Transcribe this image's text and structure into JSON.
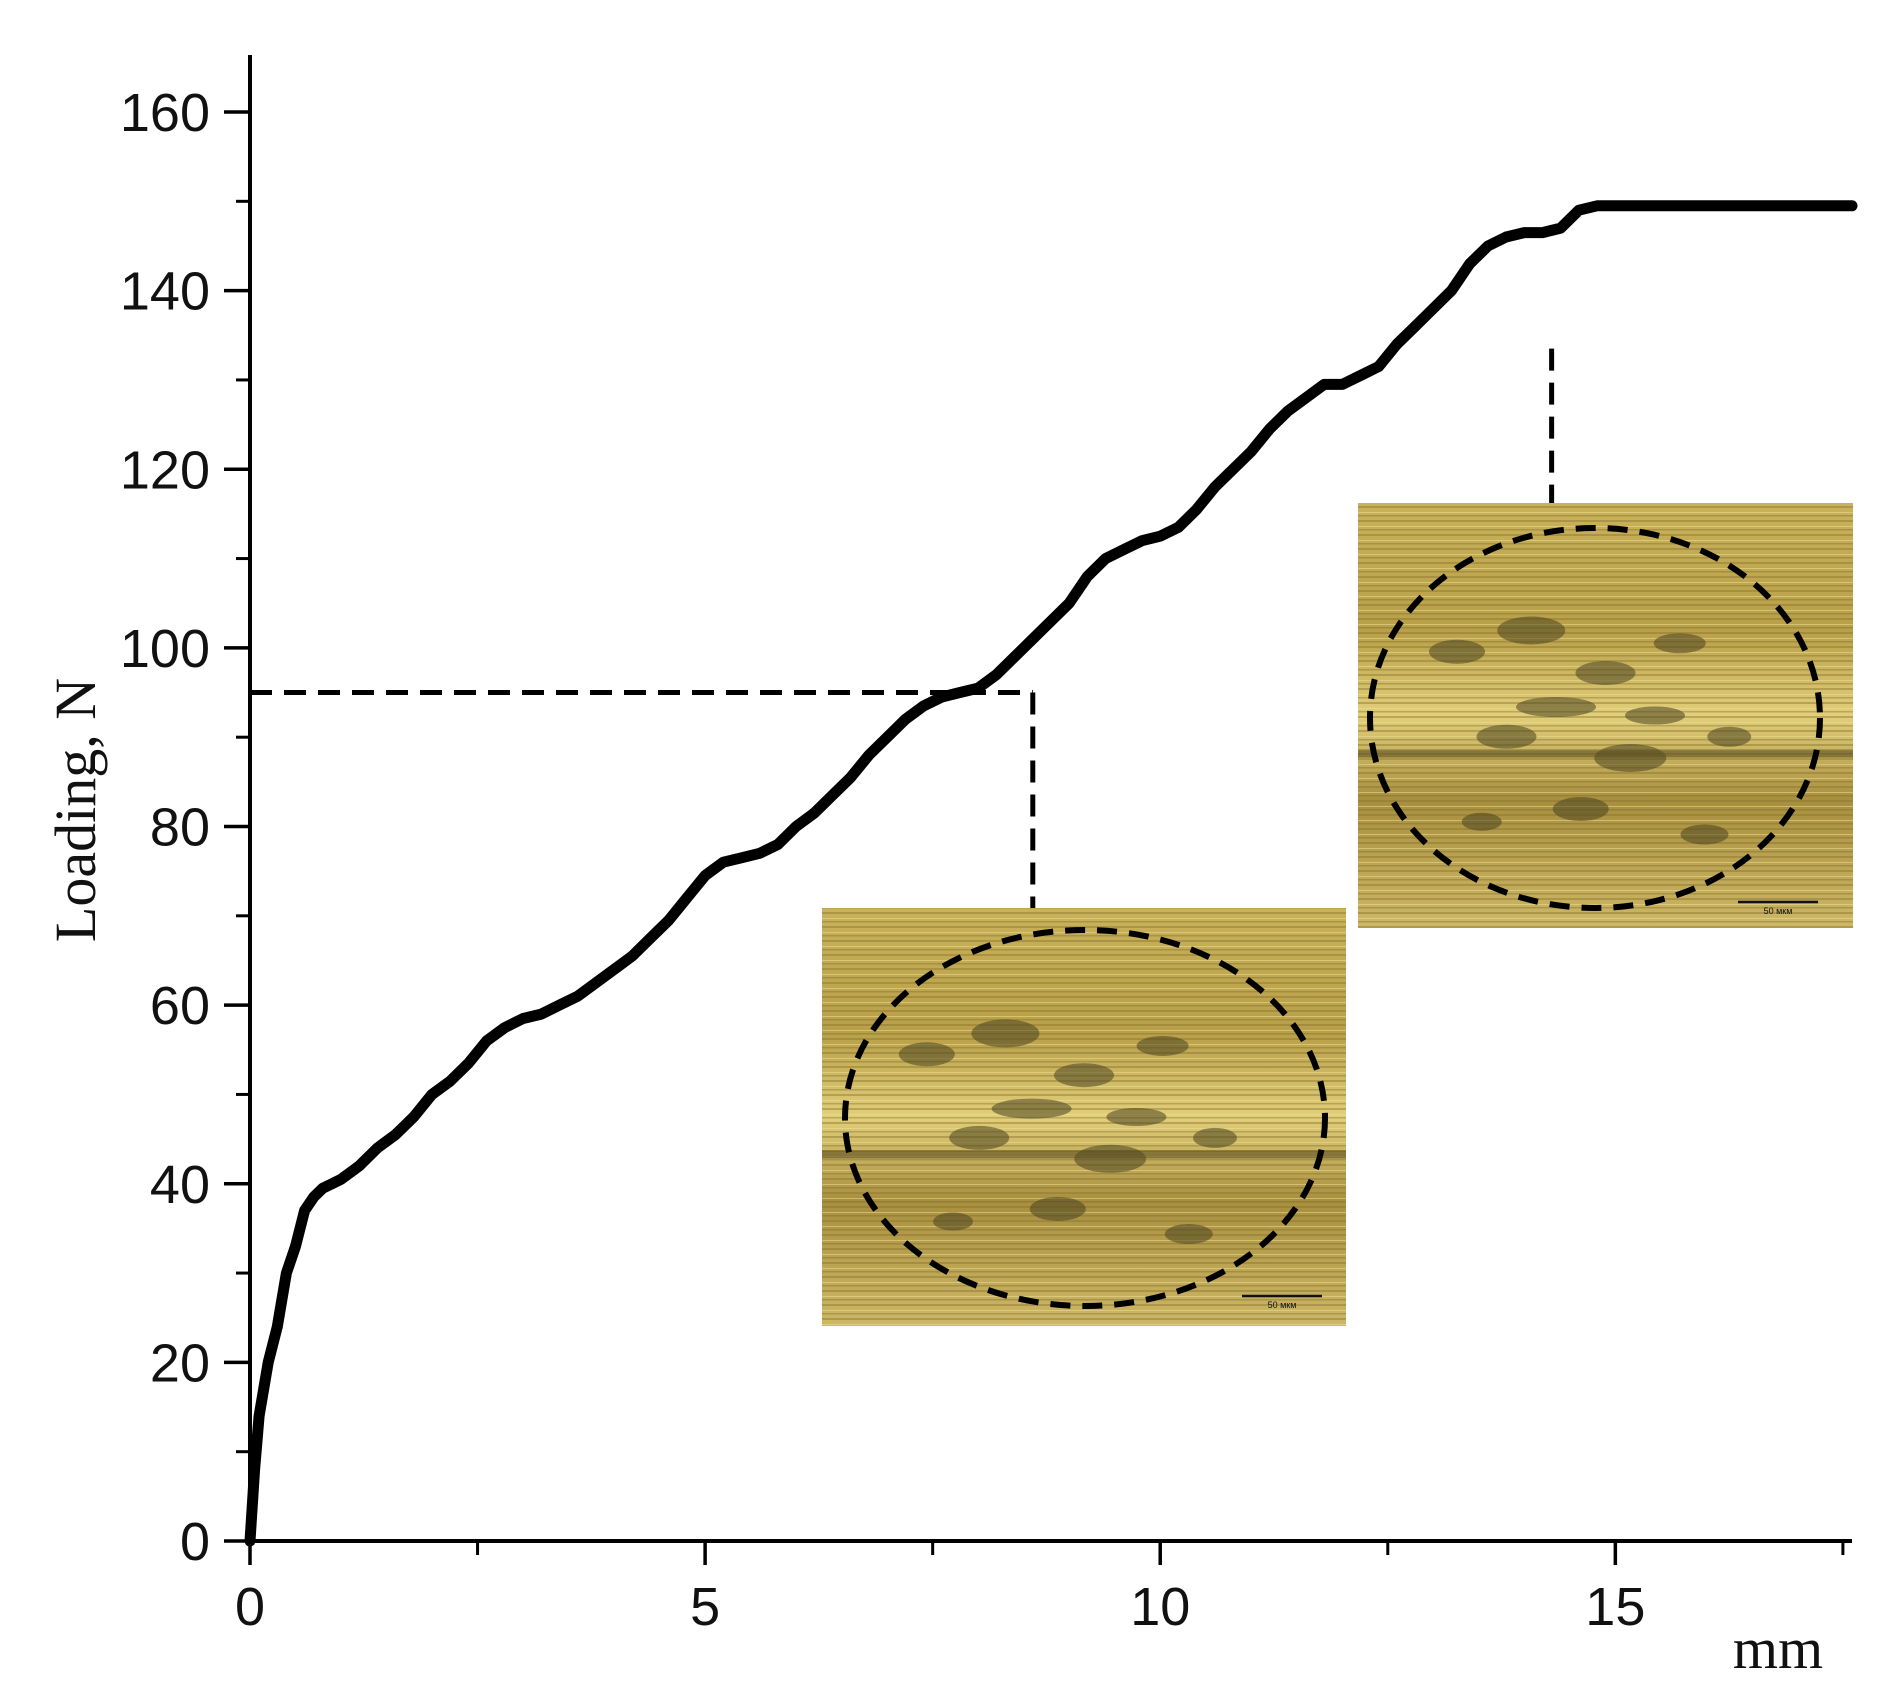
{
  "chart_data": {
    "type": "line",
    "title": "",
    "xlabel": "mm",
    "ylabel": "Loading, N",
    "xlim": [
      0,
      17.6
    ],
    "ylim": [
      0,
      160
    ],
    "x_ticks": [
      "0",
      "5",
      "10",
      "15"
    ],
    "y_ticks": [
      "0",
      "20",
      "40",
      "60",
      "80",
      "100",
      "120",
      "140",
      "160"
    ],
    "grid": false,
    "legend": "none",
    "line_color": "#000000",
    "series": [
      {
        "name": "",
        "x": [
          0,
          0.05,
          0.1,
          0.2,
          0.3,
          0.4,
          0.5,
          0.6,
          0.7,
          0.8,
          0.9,
          1.0,
          1.2,
          1.4,
          1.6,
          1.8,
          2.0,
          2.2,
          2.4,
          2.6,
          2.8,
          3.0,
          3.2,
          3.4,
          3.6,
          3.8,
          4.0,
          4.2,
          4.4,
          4.6,
          4.8,
          5.0,
          5.2,
          5.4,
          5.6,
          5.8,
          6.0,
          6.2,
          6.4,
          6.6,
          6.8,
          7.0,
          7.2,
          7.4,
          7.6,
          7.8,
          8.0,
          8.2,
          8.4,
          8.6,
          8.8,
          9.0,
          9.2,
          9.4,
          9.6,
          9.8,
          10.0,
          10.2,
          10.4,
          10.6,
          10.8,
          11.0,
          11.2,
          11.4,
          11.6,
          11.8,
          12.0,
          12.2,
          12.4,
          12.6,
          12.8,
          13.0,
          13.2,
          13.4,
          13.6,
          13.8,
          14.0,
          14.2,
          14.4,
          14.6,
          14.8,
          15.0,
          15.2,
          15.4,
          15.6,
          15.8,
          16.0,
          16.2,
          16.4,
          16.6,
          16.8,
          17.0,
          17.2,
          17.4,
          17.6
        ],
        "y": [
          0,
          8,
          14,
          20,
          24,
          30,
          33,
          37,
          38.5,
          39.5,
          40,
          40.5,
          42,
          44,
          45.5,
          47.5,
          50,
          51.5,
          53.5,
          56,
          57.5,
          58.5,
          59,
          60,
          61,
          62.5,
          64,
          65.5,
          67.5,
          69.5,
          72,
          74.5,
          76,
          76.5,
          77,
          78,
          80,
          81.5,
          83.5,
          85.5,
          88,
          90,
          92,
          93.5,
          94.5,
          95,
          95.5,
          97,
          99,
          101,
          103,
          105,
          108,
          110,
          111,
          112,
          112.5,
          113.5,
          115.5,
          118,
          120,
          122,
          124.5,
          126.5,
          128,
          129.5,
          129.5,
          130.5,
          131.5,
          134,
          136,
          138,
          140,
          143,
          145,
          146,
          146.5,
          146.5,
          147,
          149,
          149.5,
          149.5,
          149.5,
          149.5,
          149.5,
          149.5,
          149.5,
          149.5,
          149.5,
          149.5,
          149.5,
          149.5,
          149.5,
          149.5,
          149.5
        ]
      }
    ],
    "annotations": [
      {
        "kind": "reference",
        "x": 8.6,
        "y": 95
      },
      {
        "kind": "reference",
        "x": 14.3,
        "y": 133.5
      }
    ],
    "insets": [
      {
        "scale_label": "50 мкм"
      },
      {
        "scale_label": "50 мкм"
      }
    ]
  }
}
